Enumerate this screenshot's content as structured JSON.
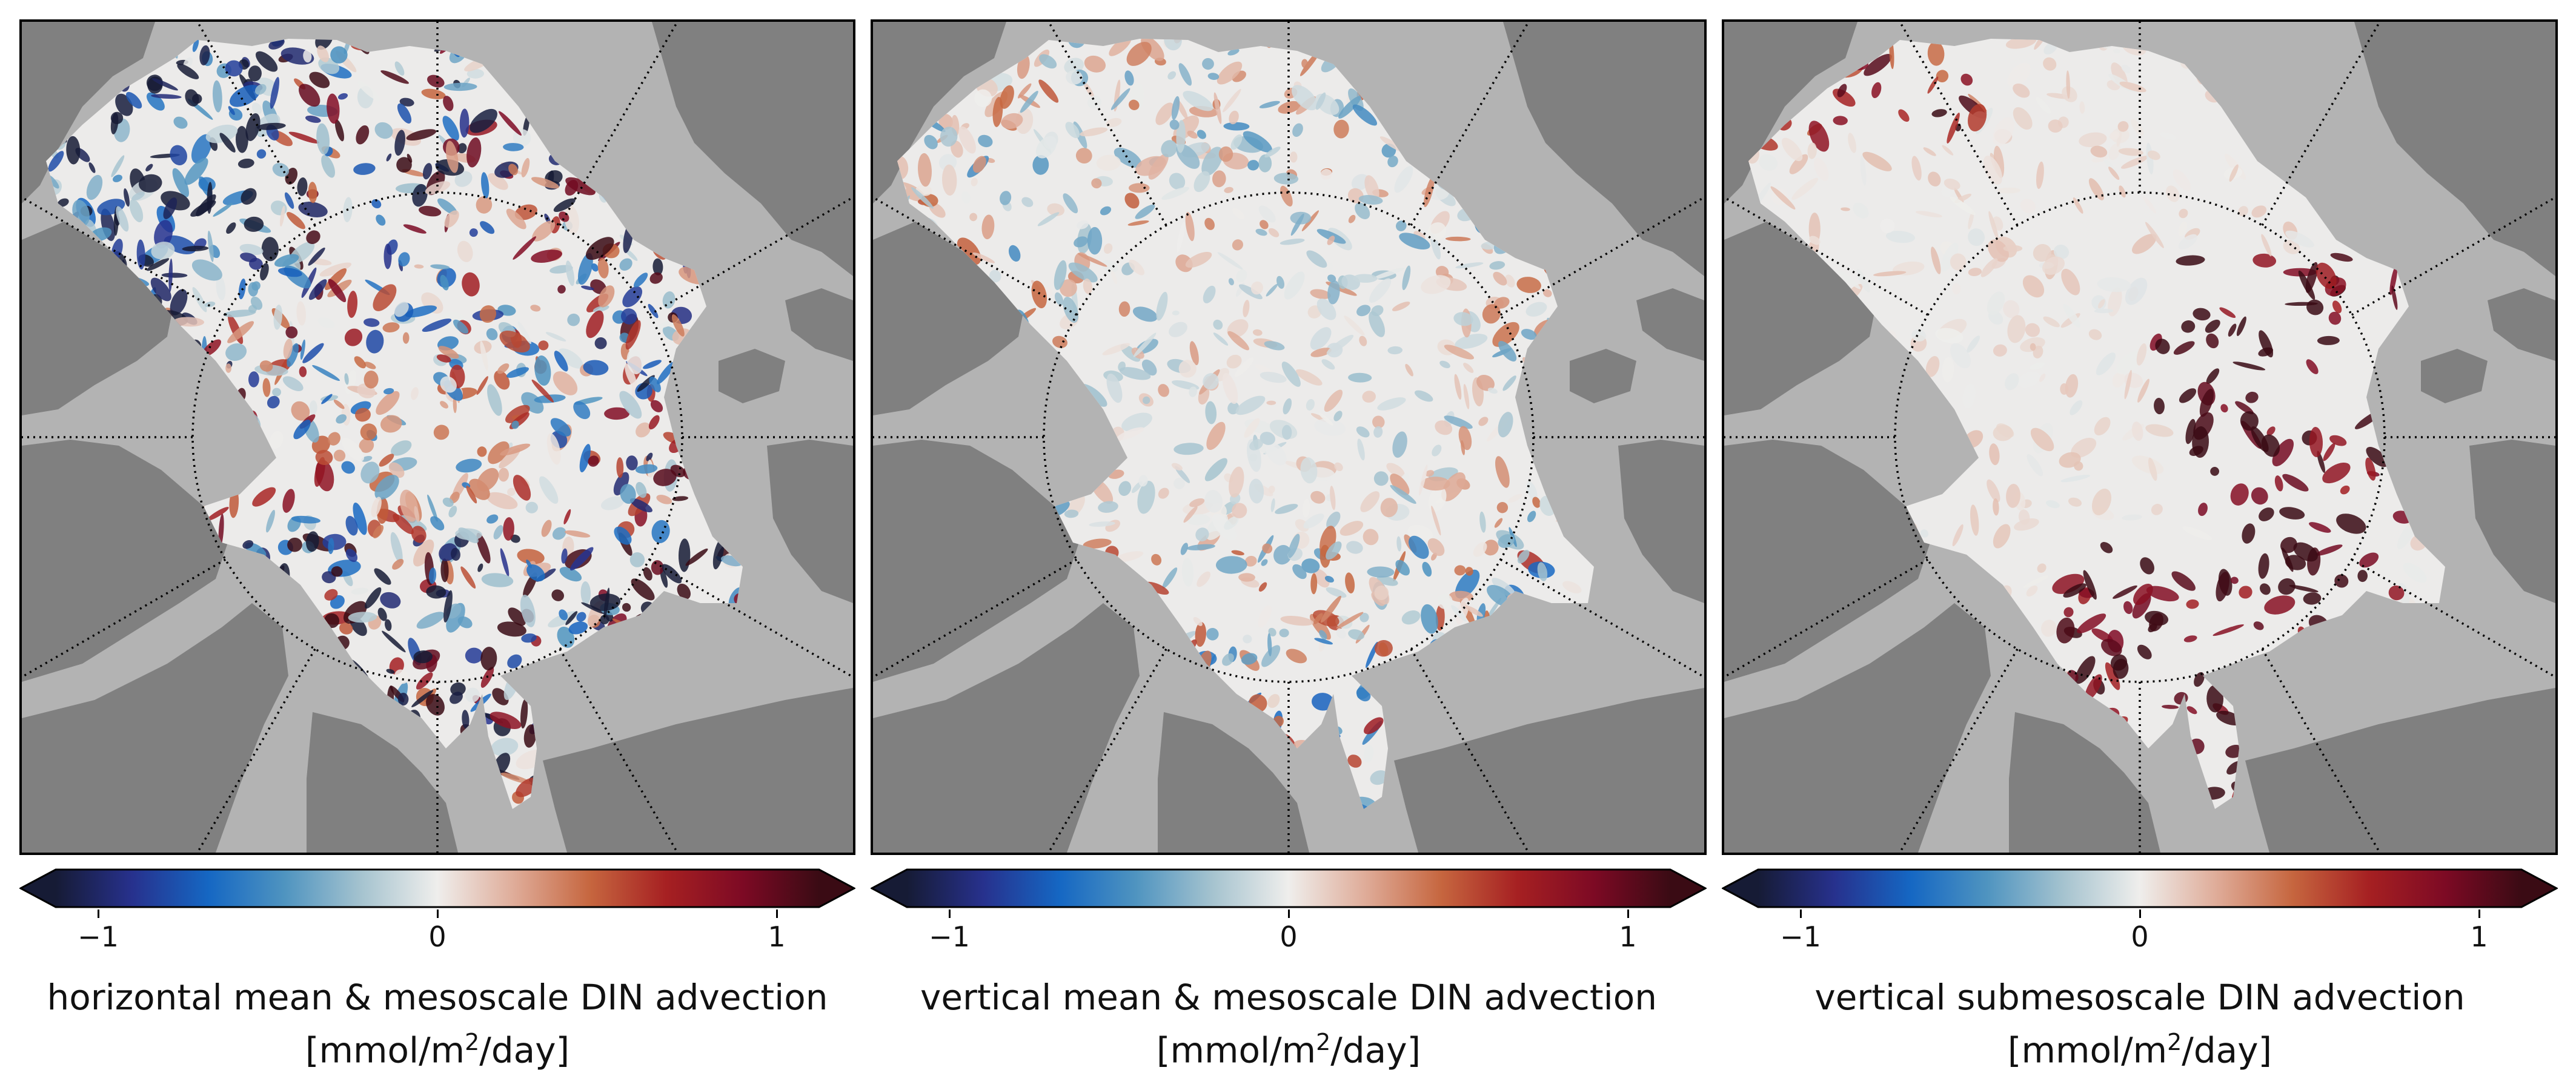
{
  "colormap": {
    "name": "balance",
    "stops": [
      "#161b35",
      "#27318d",
      "#1567c3",
      "#4f94c0",
      "#a5c3cf",
      "#efeeec",
      "#dfac99",
      "#c6663f",
      "#a62022",
      "#7d0a24",
      "#3a0b14"
    ],
    "vmin": -1,
    "vmax": 1,
    "extend": "both"
  },
  "map_style": {
    "ocean_color": "#b3b3b3",
    "land_color": "#808080",
    "gridline_style": "dotted",
    "gridline_color": "#000000",
    "projection": "north-polar-stereographic"
  },
  "panels": [
    {
      "id": "horizontal",
      "colorbar": {
        "ticks": [
          {
            "value": -1,
            "label": "−1"
          },
          {
            "value": 0,
            "label": "0"
          },
          {
            "value": 1,
            "label": "1"
          }
        ],
        "label_line1": "horizontal mean & mesoscale DIN advection",
        "label_unit_pre": "[mmol/m",
        "label_unit_sup": "2",
        "label_unit_post": "/day]"
      }
    },
    {
      "id": "vertical-mean",
      "colorbar": {
        "ticks": [
          {
            "value": -1,
            "label": "−1"
          },
          {
            "value": 0,
            "label": "0"
          },
          {
            "value": 1,
            "label": "1"
          }
        ],
        "label_line1": "vertical mean & mesoscale DIN advection",
        "label_unit_pre": "[mmol/m",
        "label_unit_sup": "2",
        "label_unit_post": "/day]"
      }
    },
    {
      "id": "vertical-submeso",
      "colorbar": {
        "ticks": [
          {
            "value": -1,
            "label": "−1"
          },
          {
            "value": 0,
            "label": "0"
          },
          {
            "value": 1,
            "label": "1"
          }
        ],
        "label_line1": "vertical submesoscale DIN advection",
        "label_unit_pre": "[mmol/m",
        "label_unit_sup": "2",
        "label_unit_post": "/day]"
      }
    }
  ]
}
